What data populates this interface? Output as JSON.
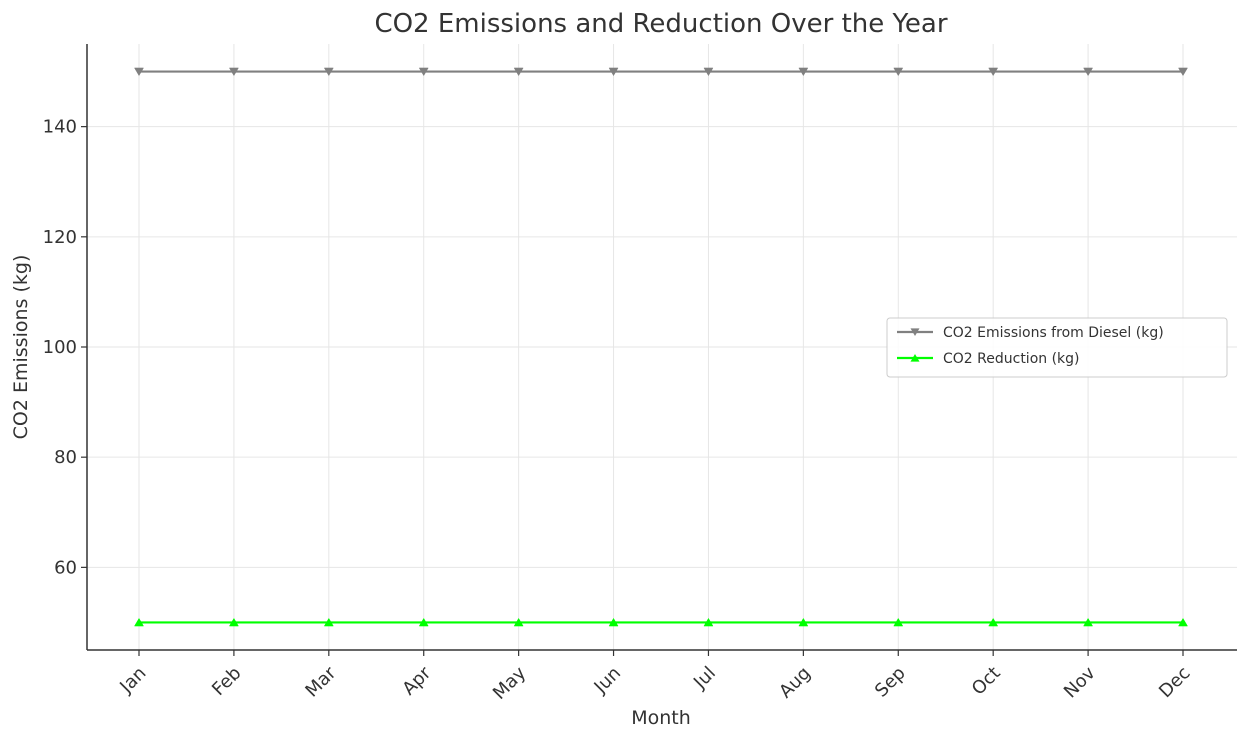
{
  "chart_data": {
    "type": "line",
    "title": "CO2 Emissions and Reduction Over the Year",
    "xlabel": "Month",
    "ylabel": "CO2 Emissions (kg)",
    "categories": [
      "Jan",
      "Feb",
      "Mar",
      "Apr",
      "May",
      "Jun",
      "Jul",
      "Aug",
      "Sep",
      "Oct",
      "Nov",
      "Dec"
    ],
    "ylim": [
      45,
      155
    ],
    "yticks": [
      60,
      80,
      100,
      120,
      140
    ],
    "grid": true,
    "legend_position": "center-right",
    "series": [
      {
        "name": "CO2 Emissions from Diesel (kg)",
        "values": [
          150,
          150,
          150,
          150,
          150,
          150,
          150,
          150,
          150,
          150,
          150,
          150
        ],
        "color": "#808080",
        "marker": "triangle-down"
      },
      {
        "name": "CO2 Reduction (kg)",
        "values": [
          50,
          50,
          50,
          50,
          50,
          50,
          50,
          50,
          50,
          50,
          50,
          50
        ],
        "color": "#00ff00",
        "marker": "triangle-up"
      }
    ]
  }
}
